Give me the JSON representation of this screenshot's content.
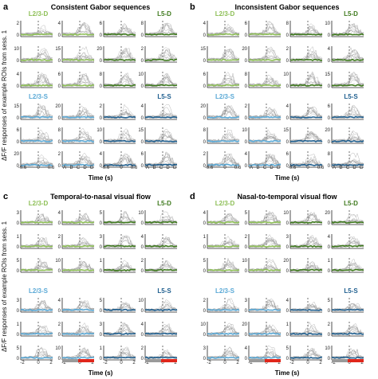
{
  "figure": {
    "y_axis_label": "ΔF/F responses of example ROIs from sess. 1",
    "x_axis_label": "Time (s)"
  },
  "chart_data": [
    {
      "type": "line",
      "panel_letter": "a",
      "title": "Consistent Gabor sequences",
      "xlabel": "Time (s)",
      "layers": [
        {
          "name": "L2/3-D",
          "color": "#8dbf56"
        },
        {
          "name": "L5-D",
          "color": "#3f7a1e"
        },
        {
          "name": "L2/3-S",
          "color": "#5aa9d6"
        },
        {
          "name": "L5-S",
          "color": "#1f5f8f"
        }
      ],
      "x_ticks_numeric": [
        "-0.6",
        "0",
        "0.6"
      ],
      "x_ticks_frames": [
        "A",
        "B",
        "C",
        "D",
        "G"
      ],
      "y_ticks": [
        "0",
        "2",
        "4",
        "6",
        "8",
        "10",
        "15",
        "20"
      ],
      "grid": false
    },
    {
      "type": "line",
      "panel_letter": "b",
      "title": "Inconsistent Gabor sequences",
      "xlabel": "Time (s)",
      "layers": [
        {
          "name": "L2/3-D",
          "color": "#8dbf56"
        },
        {
          "name": "L5-D",
          "color": "#3f7a1e"
        },
        {
          "name": "L2/3-S",
          "color": "#5aa9d6"
        },
        {
          "name": "L5-S",
          "color": "#1f5f8f"
        }
      ],
      "x_ticks_numeric": [
        "-0.6",
        "0",
        "0.6"
      ],
      "x_ticks_frames": [
        "A",
        "B",
        "C",
        "D",
        "G"
      ],
      "y_ticks": [
        "0",
        "2",
        "4",
        "6",
        "8",
        "10",
        "15",
        "20"
      ],
      "grid": false
    },
    {
      "type": "line",
      "panel_letter": "c",
      "title": "Temporal-to-nasal visual flow",
      "xlabel": "Time (s)",
      "layers": [
        {
          "name": "L2/3-D",
          "color": "#8dbf56"
        },
        {
          "name": "L5-D",
          "color": "#3f7a1e"
        },
        {
          "name": "L2/3-S",
          "color": "#5aa9d6"
        },
        {
          "name": "L5-S",
          "color": "#1f5f8f"
        }
      ],
      "x_ticks_numeric": [
        "-2",
        "0",
        "2"
      ],
      "y_ticks": [
        "0",
        "1",
        "2",
        "3",
        "4",
        "5",
        "10"
      ],
      "grid": false
    },
    {
      "type": "line",
      "panel_letter": "d",
      "title": "Nasal-to-temporal visual flow",
      "xlabel": "Time (s)",
      "layers": [
        {
          "name": "L2/3-D",
          "color": "#8dbf56"
        },
        {
          "name": "L5-D",
          "color": "#3f7a1e"
        },
        {
          "name": "L2/3-S",
          "color": "#5aa9d6"
        },
        {
          "name": "L5-S",
          "color": "#1f5f8f"
        }
      ],
      "x_ticks_numeric": [
        "-2",
        "0",
        "2"
      ],
      "y_ticks": [
        "0",
        "1",
        "2",
        "3",
        "4",
        "5",
        "10",
        "20"
      ],
      "grid": false
    }
  ],
  "style": {
    "trace_gray": "#9a9a9a",
    "axis_color": "#222222",
    "bar_gray": "#9a9a9a",
    "bar_red": "#e0261b"
  }
}
